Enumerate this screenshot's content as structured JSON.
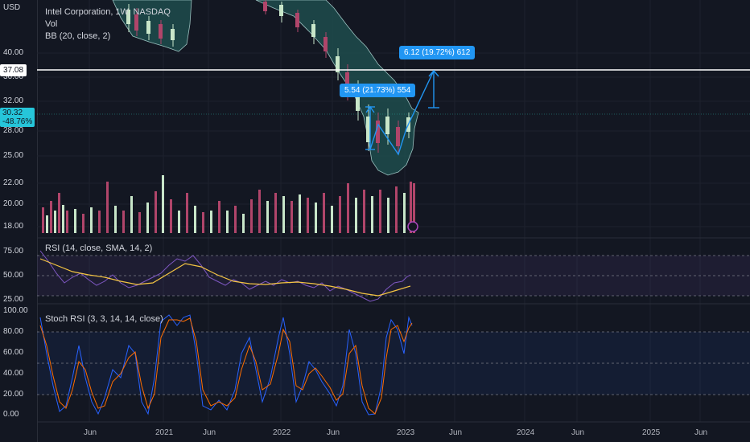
{
  "axis_currency": "USD",
  "legend": {
    "symbol": "Intel Corporation, 1W, NASDAQ",
    "vol": "Vol",
    "bb": "BB (20, close, 2)",
    "rsi": "RSI (14, close, SMA, 14, 2)",
    "stoch": "Stoch RSI (3, 3, 14, 14, close)"
  },
  "price_axis": [
    "40.00",
    "36.00",
    "32.00",
    "28.00",
    "25.00",
    "22.00",
    "20.00",
    "18.00"
  ],
  "horizontal_line_label": "37.08",
  "current_price": {
    "value": "30.32",
    "change": "-48.76%"
  },
  "rsi_axis": [
    "75.00",
    "50.00",
    "25.00"
  ],
  "stoch_axis": [
    "100.00",
    "80.00",
    "60.00",
    "40.00",
    "20.00",
    "0.00"
  ],
  "time_axis": [
    "Jun",
    "2021",
    "Jun",
    "2022",
    "Jun",
    "2023",
    "Jun",
    "2024",
    "Jun",
    "2025",
    "Jun"
  ],
  "measure_low": "5.54 (21.73%) 554",
  "measure_high": "6.12 (19.72%) 612",
  "colors": {
    "background": "#131722",
    "bb_fill": "#1e4d4d",
    "up": "#c8e6c9",
    "down": "#b0456a",
    "accent": "#2196f3",
    "rsi_line": "#7e57c2",
    "rsi_ma": "#f5c542",
    "stoch_k": "#2962ff",
    "stoch_d": "#ff6d00"
  }
}
